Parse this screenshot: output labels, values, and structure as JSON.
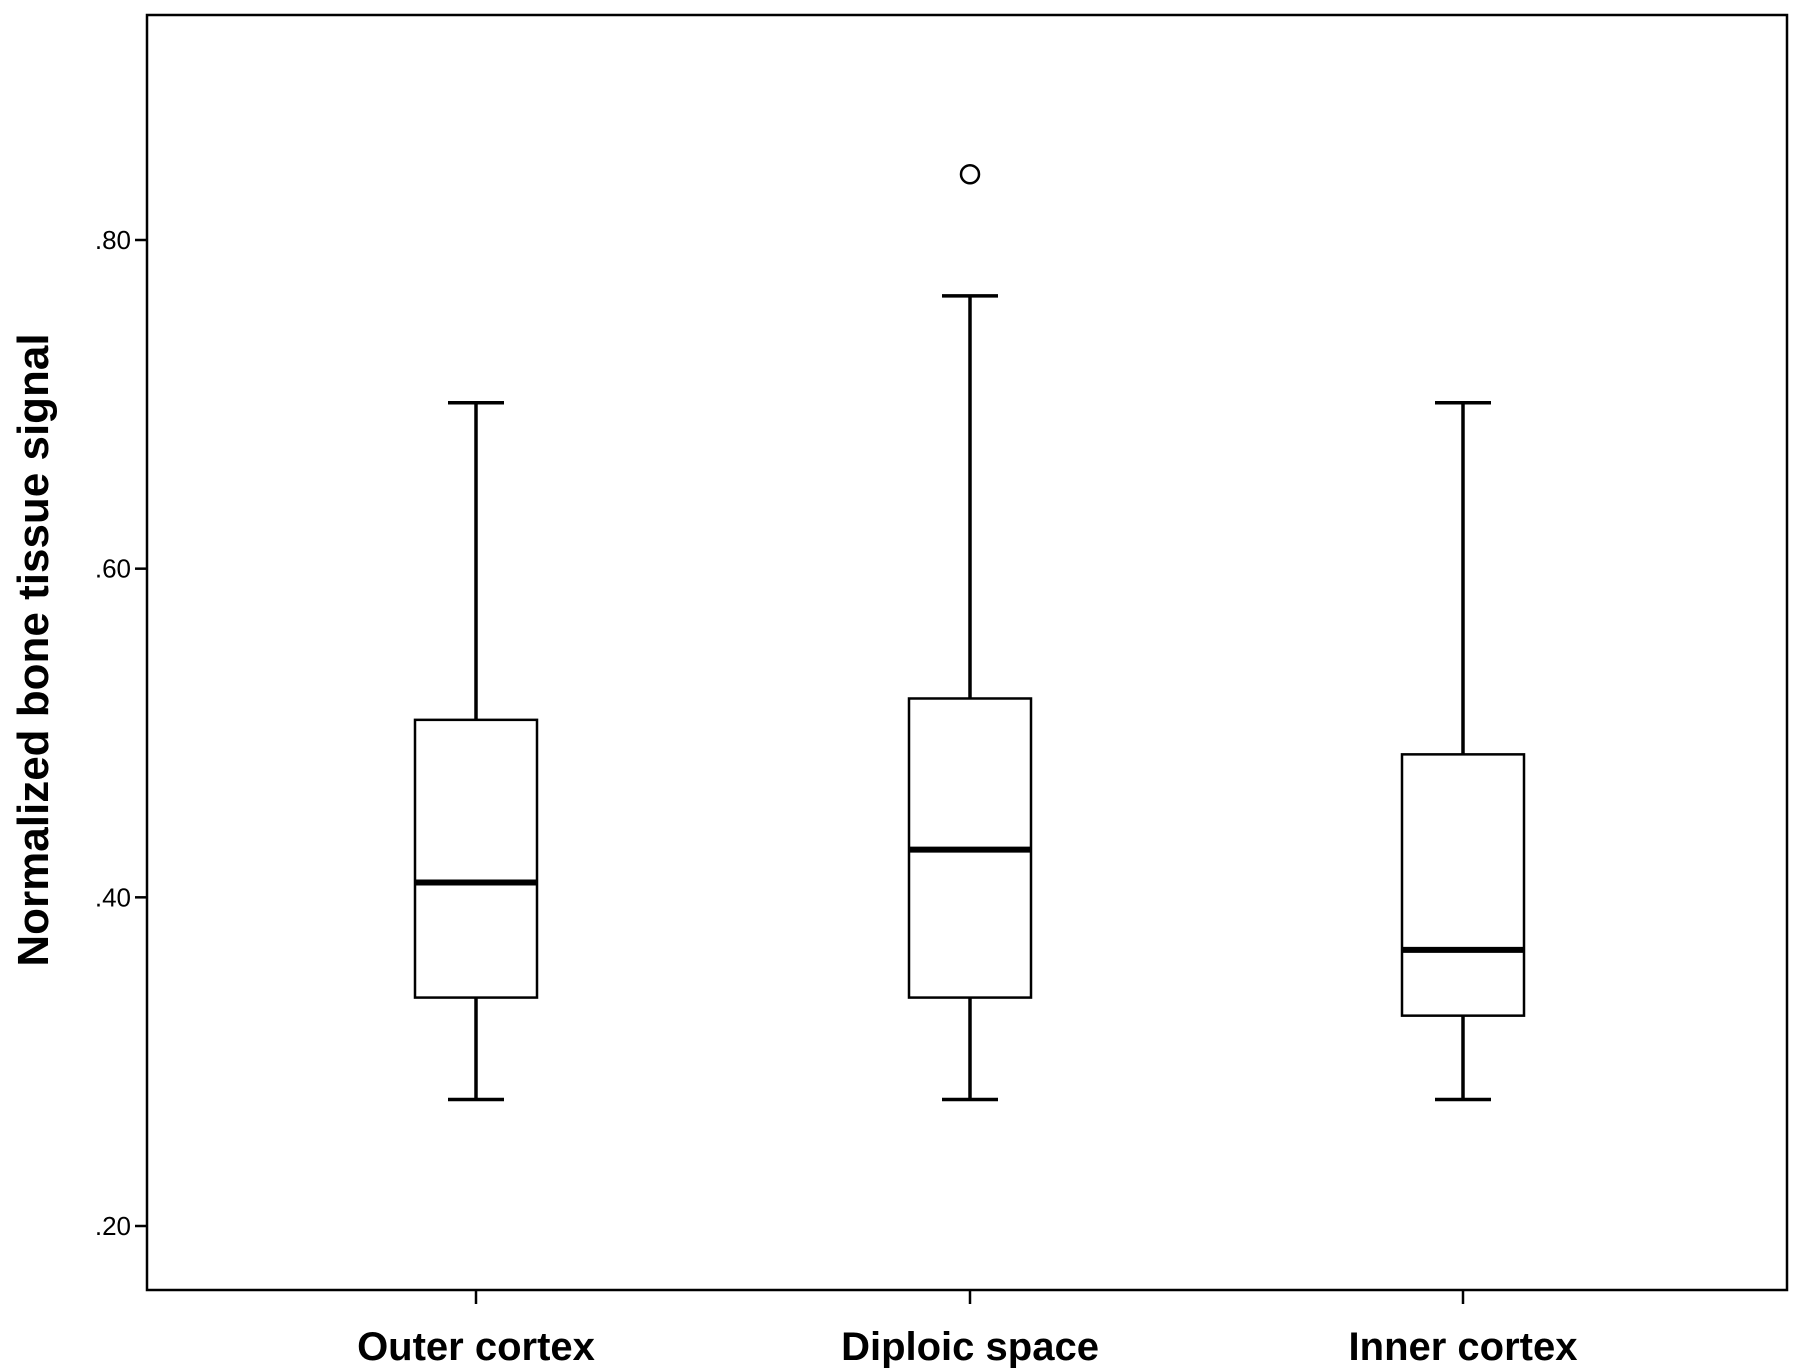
{
  "chart_data": {
    "type": "box",
    "ylabel": "Normalized bone tissue signal",
    "xlabel": "",
    "ylim": [
      0.16,
      0.94
    ],
    "yticks": [
      0.2,
      0.4,
      0.6,
      0.8
    ],
    "ytick_labels": [
      ".20",
      ".40",
      ".60",
      ".80"
    ],
    "grid": false,
    "categories": [
      "Outer cortex",
      "Diploic space",
      "Inner cortex"
    ],
    "boxes": [
      {
        "category": "Outer cortex",
        "min": 0.277,
        "q1": 0.339,
        "median": 0.409,
        "q3": 0.508,
        "max": 0.701,
        "outliers": []
      },
      {
        "category": "Diploic space",
        "min": 0.277,
        "q1": 0.339,
        "median": 0.429,
        "q3": 0.521,
        "max": 0.766,
        "outliers": [
          0.84
        ]
      },
      {
        "category": "Inner cortex",
        "min": 0.277,
        "q1": 0.328,
        "median": 0.368,
        "q3": 0.487,
        "max": 0.701,
        "outliers": []
      }
    ]
  }
}
